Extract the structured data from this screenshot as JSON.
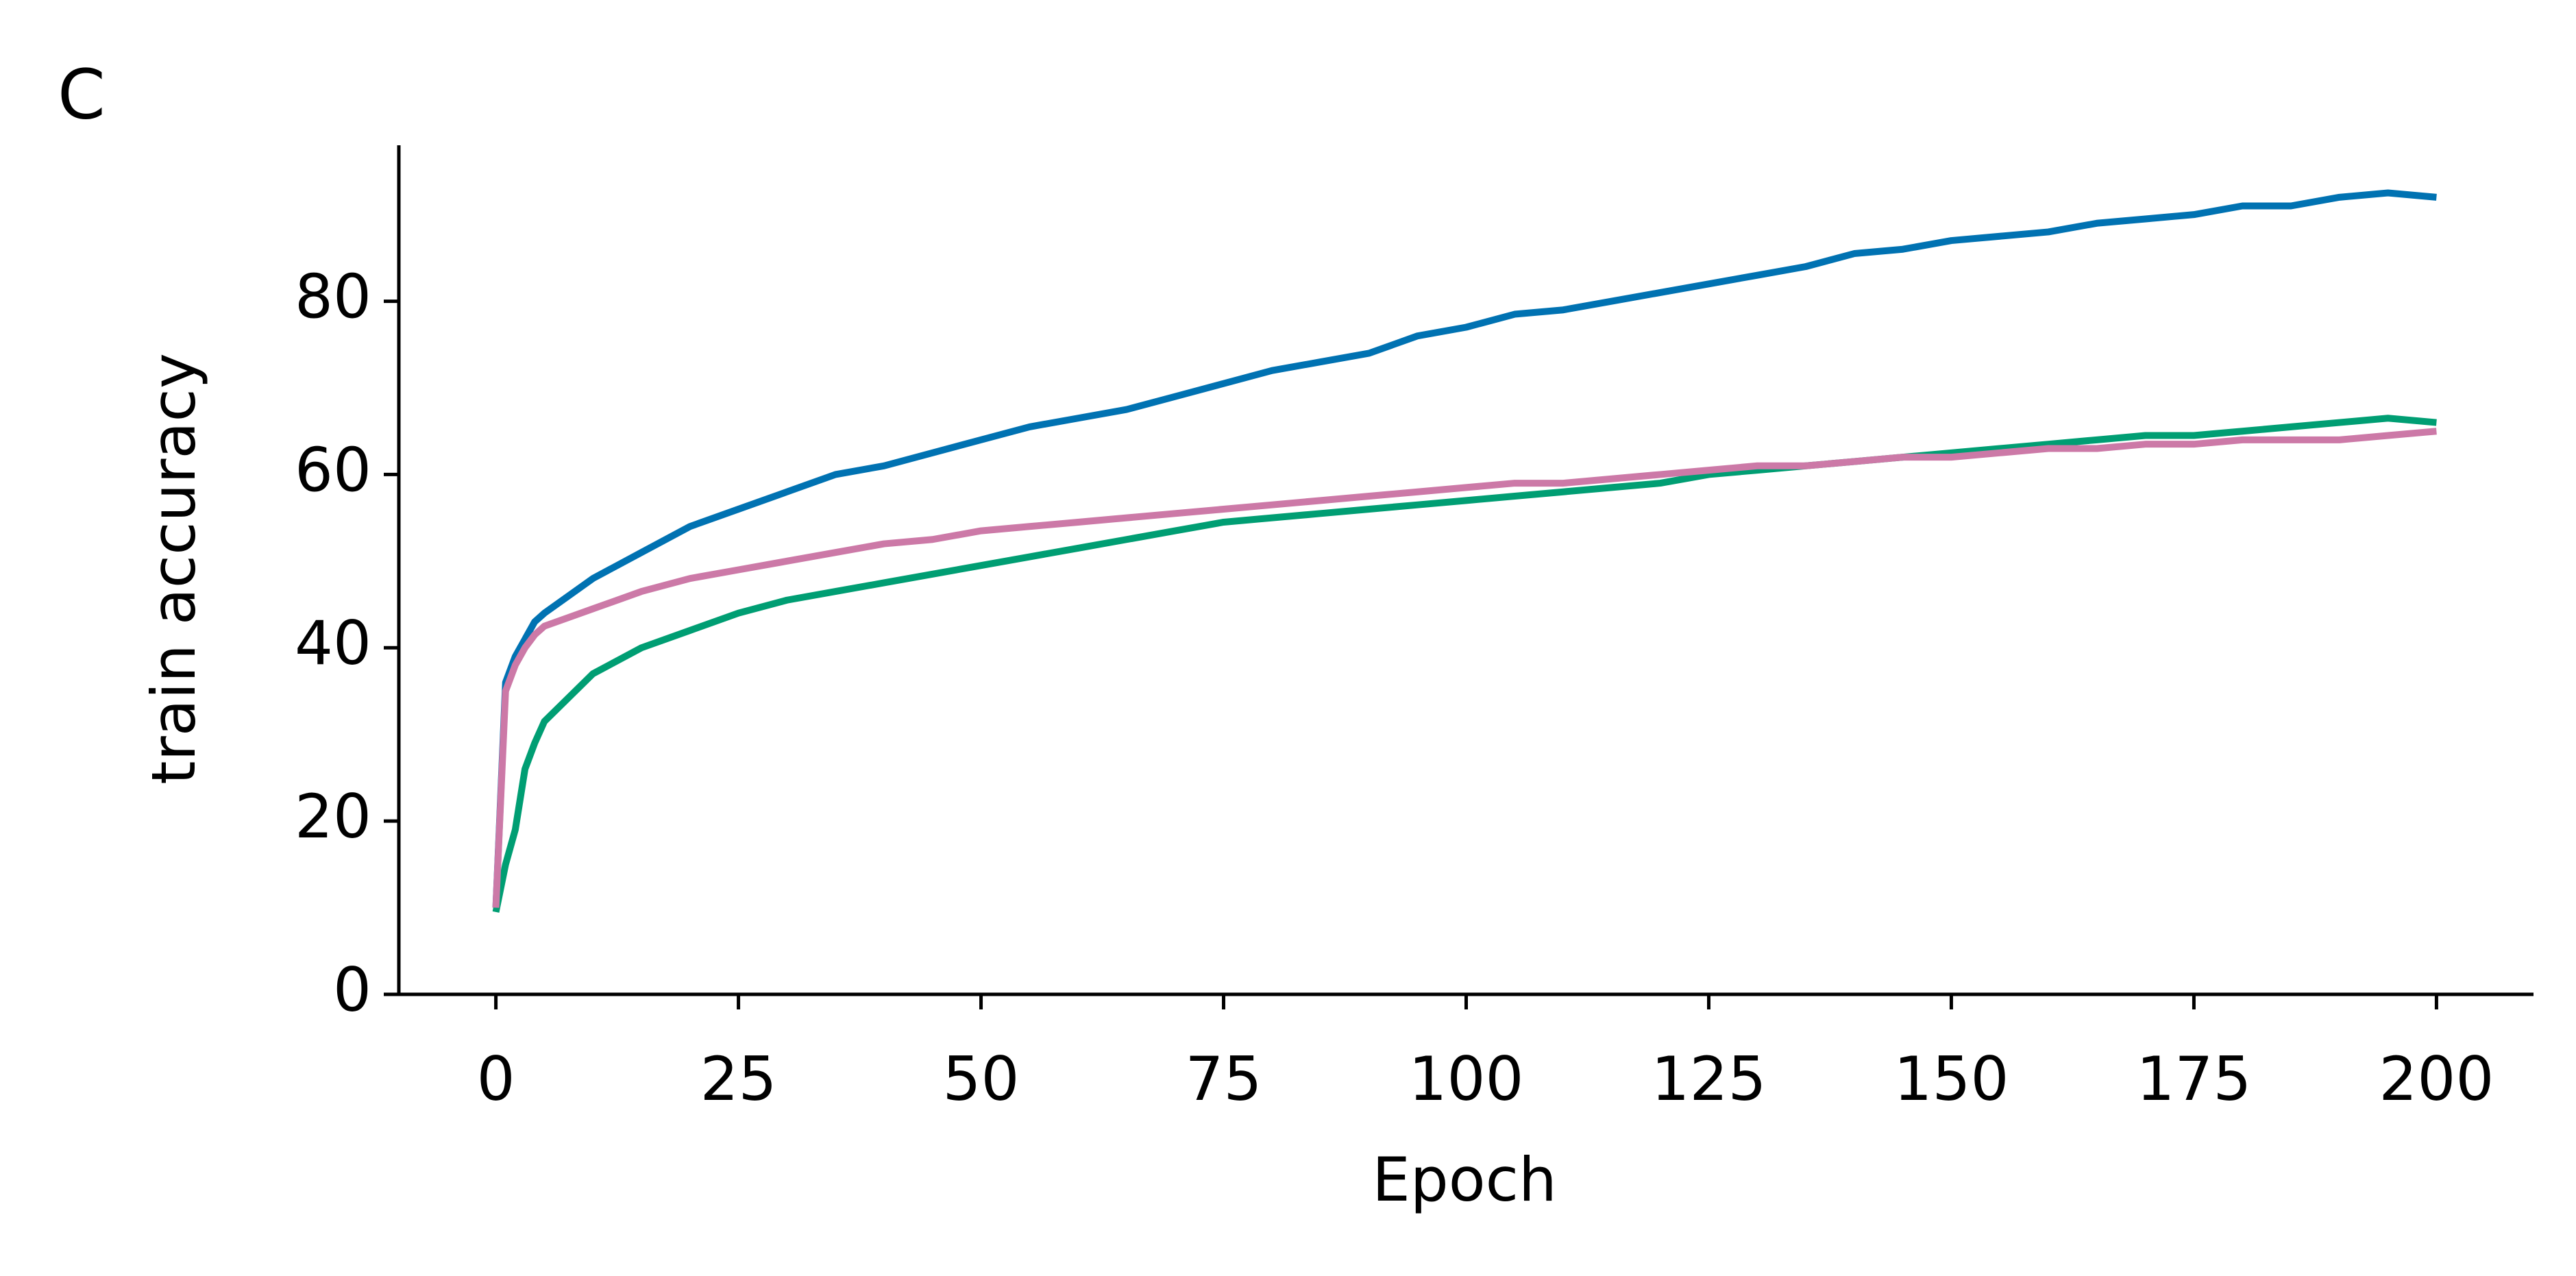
{
  "chart_data": {
    "type": "line",
    "panel_label": "C",
    "xlabel": "Epoch",
    "ylabel": "train accuracy",
    "x": [
      0,
      1,
      2,
      3,
      4,
      5,
      10,
      15,
      20,
      25,
      30,
      35,
      40,
      45,
      50,
      55,
      60,
      65,
      70,
      75,
      80,
      85,
      90,
      95,
      100,
      105,
      110,
      115,
      120,
      125,
      130,
      135,
      140,
      145,
      150,
      155,
      160,
      165,
      170,
      175,
      180,
      185,
      190,
      195,
      200
    ],
    "series": [
      {
        "color": "#0072b2",
        "values": [
          10,
          36,
          39,
          41,
          43,
          44,
          48,
          51,
          54,
          56,
          58,
          60,
          61,
          62.5,
          64,
          65.5,
          66.5,
          67.5,
          69,
          70.5,
          72,
          73,
          74,
          76,
          77,
          78.5,
          79,
          80,
          81,
          82,
          83,
          84,
          85.5,
          86,
          87,
          87.5,
          88,
          89,
          89.5,
          90,
          91,
          91,
          92,
          92.5,
          92
        ]
      },
      {
        "color": "#009e73",
        "values": [
          9.5,
          15,
          19,
          26,
          29,
          31.5,
          37,
          40,
          42,
          44,
          45.5,
          46.5,
          47.5,
          48.5,
          49.5,
          50.5,
          51.5,
          52.5,
          53.5,
          54.5,
          55,
          55.5,
          56,
          56.5,
          57,
          57.5,
          58,
          58.5,
          59,
          60,
          60.5,
          61,
          61.5,
          62,
          62.5,
          63,
          63.5,
          64,
          64.5,
          64.5,
          65,
          65.5,
          66,
          66.5,
          66
        ]
      },
      {
        "color": "#cc79a7",
        "values": [
          10,
          35,
          38,
          40,
          41.5,
          42.5,
          44.5,
          46.5,
          48,
          49,
          50,
          51,
          52,
          52.5,
          53.5,
          54,
          54.5,
          55,
          55.5,
          56,
          56.5,
          57,
          57.5,
          58,
          58.5,
          59,
          59,
          59.5,
          60,
          60.5,
          61,
          61,
          61.5,
          62,
          62,
          62.5,
          63,
          63,
          63.5,
          63.5,
          64,
          64,
          64,
          64.5,
          65
        ]
      }
    ],
    "xlim": [
      -10,
      210
    ],
    "ylim": [
      0,
      98
    ],
    "xticks": [
      0,
      25,
      50,
      75,
      100,
      125,
      150,
      175,
      200
    ],
    "yticks": [
      0,
      20,
      40,
      60,
      80
    ],
    "grid": false
  }
}
